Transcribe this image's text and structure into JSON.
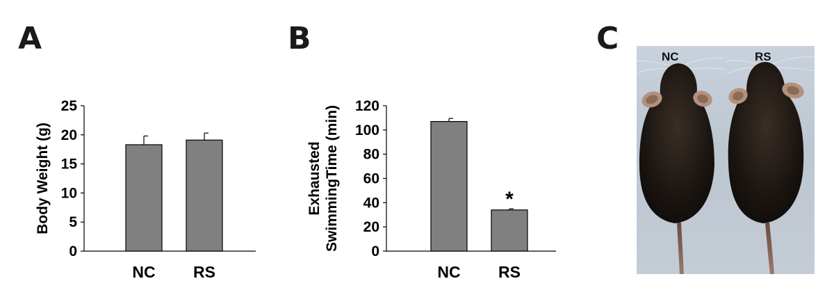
{
  "panels": {
    "a": {
      "letter": "A"
    },
    "b": {
      "letter": "B"
    },
    "c": {
      "letter": "C",
      "label_nc": "NC",
      "label_rs": "RS"
    }
  },
  "chart_data": [
    {
      "type": "bar",
      "panel": "A",
      "title": "",
      "xlabel": "",
      "ylabel": "Body Weight (g)",
      "categories": [
        "NC",
        "RS"
      ],
      "values": [
        18.3,
        19.1
      ],
      "errors": [
        1.5,
        1.2
      ],
      "ylim": [
        0,
        25
      ],
      "yticks": [
        "0",
        "5",
        "10",
        "15",
        "20",
        "25"
      ],
      "bar_color": "#808080",
      "annotations": []
    },
    {
      "type": "bar",
      "panel": "B",
      "title": "",
      "xlabel": "",
      "ylabel_lines": [
        "Exhausted",
        "SwimmingTime (min)"
      ],
      "categories": [
        "NC",
        "RS"
      ],
      "values": [
        107,
        34
      ],
      "errors": [
        2.5,
        1.0
      ],
      "ylim": [
        0,
        120
      ],
      "yticks": [
        "0",
        "20",
        "40",
        "60",
        "80",
        "100",
        "120"
      ],
      "bar_color": "#808080",
      "annotations": [
        {
          "category": "RS",
          "text": "*"
        }
      ]
    }
  ]
}
